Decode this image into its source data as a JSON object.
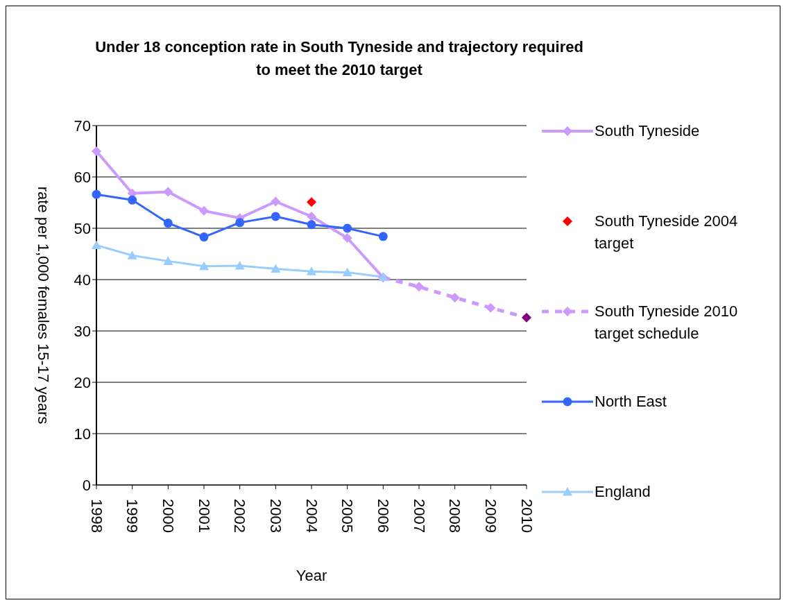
{
  "chart_data": {
    "type": "line",
    "title": "Under 18 conception rate in South Tyneside and trajectory required to meet the 2010 target",
    "xlabel": "Year",
    "ylabel": "rate per 1,000 females 15-17 years",
    "categories": [
      "1998",
      "1999",
      "2000",
      "2001",
      "2002",
      "2003",
      "2004",
      "2005",
      "2006",
      "2007",
      "2008",
      "2009",
      "2010"
    ],
    "series": [
      {
        "name": "South Tyneside",
        "color": "#cc99ff",
        "marker": "diamond",
        "values": [
          65,
          56.8,
          57.1,
          53.4,
          52.0,
          55.2,
          52.3,
          48.1,
          40.4,
          null,
          null,
          null,
          null
        ]
      },
      {
        "name": "South Tyneside 2004 target",
        "type": "scatter",
        "color": "#ff0000",
        "marker": "diamond",
        "values": [
          null,
          null,
          null,
          null,
          null,
          null,
          55.1,
          null,
          null,
          null,
          null,
          null,
          null
        ]
      },
      {
        "name": "South Tyneside 2010 target schedule",
        "color": "#cc99ff",
        "colors": [
          null,
          null,
          null,
          null,
          null,
          null,
          null,
          null,
          null,
          null,
          null,
          null,
          "#800080"
        ],
        "marker": "diamond",
        "line_style": "dashed",
        "values": [
          null,
          null,
          null,
          null,
          null,
          null,
          null,
          null,
          40.4,
          38.6,
          36.5,
          34.5,
          32.6
        ]
      },
      {
        "name": "North East",
        "color": "#3366ff",
        "marker": "circle",
        "values": [
          56.6,
          55.5,
          51.0,
          48.3,
          51.1,
          52.3,
          50.7,
          50.0,
          48.4,
          null,
          null,
          null,
          null
        ]
      },
      {
        "name": "England",
        "color": "#99ccff",
        "marker": "triangle",
        "values": [
          46.7,
          44.7,
          43.6,
          42.6,
          42.7,
          42.1,
          41.6,
          41.4,
          40.5,
          null,
          null,
          null,
          null
        ]
      }
    ],
    "ylim": [
      0,
      70
    ],
    "yticks": [
      0,
      10,
      20,
      30,
      40,
      50,
      60,
      70
    ],
    "grid": "y",
    "legend": "right"
  }
}
